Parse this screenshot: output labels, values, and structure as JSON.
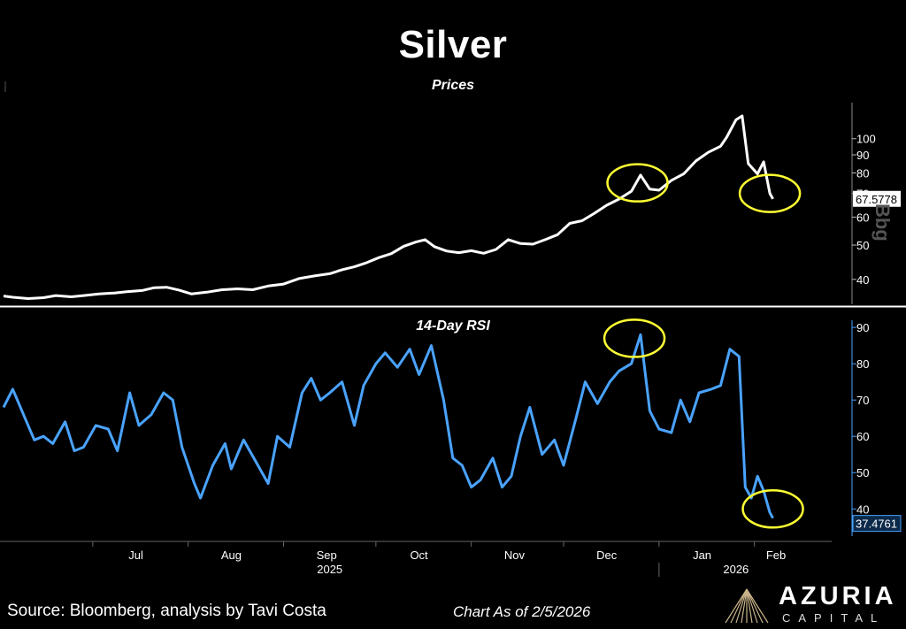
{
  "header": {
    "title": "Silver"
  },
  "footer": {
    "source": "Source: Bloomberg, analysis by Tavi Costa",
    "as_of": "Chart As of 2/5/2026"
  },
  "logo": {
    "name": "AZURIA",
    "sub": "CAPITAL"
  },
  "watermark": "Bbg",
  "colors": {
    "background": "#000000",
    "price_line": "#ffffff",
    "rsi_line": "#4aa3ff",
    "highlight_circle": "#ffff33",
    "divider": "#ffffff"
  },
  "chart_data": [
    {
      "type": "line",
      "title": "Prices",
      "x_axis": {
        "type": "date",
        "month_labels": [
          "Jul",
          "Aug",
          "Sep",
          "Oct",
          "Nov",
          "Dec",
          "Jan",
          "Feb"
        ],
        "year_labels": [
          "2025",
          "2026"
        ],
        "range": [
          "2025-06-02",
          "2026-02-10"
        ]
      },
      "y_axis": {
        "side": "right",
        "scale": "log",
        "ticks": [
          40,
          50,
          60,
          70,
          80,
          90,
          100
        ],
        "ylim": [
          34,
          125
        ]
      },
      "last_value_label": "67.5778",
      "series": [
        {
          "values": [
            [
              "2025-06-02",
              35.9
            ],
            [
              "2025-06-05",
              35.6
            ],
            [
              "2025-06-10",
              35.3
            ],
            [
              "2025-06-15",
              35.5
            ],
            [
              "2025-06-19",
              36.0
            ],
            [
              "2025-06-24",
              35.7
            ],
            [
              "2025-06-28",
              36.0
            ],
            [
              "2025-07-03",
              36.4
            ],
            [
              "2025-07-08",
              36.6
            ],
            [
              "2025-07-12",
              36.9
            ],
            [
              "2025-07-17",
              37.2
            ],
            [
              "2025-07-21",
              37.9
            ],
            [
              "2025-07-25",
              38.0
            ],
            [
              "2025-07-29",
              37.3
            ],
            [
              "2025-08-02",
              36.4
            ],
            [
              "2025-08-07",
              36.8
            ],
            [
              "2025-08-12",
              37.4
            ],
            [
              "2025-08-17",
              37.6
            ],
            [
              "2025-08-22",
              37.4
            ],
            [
              "2025-08-27",
              38.3
            ],
            [
              "2025-09-01",
              38.8
            ],
            [
              "2025-09-06",
              40.2
            ],
            [
              "2025-09-11",
              40.9
            ],
            [
              "2025-09-16",
              41.5
            ],
            [
              "2025-09-20",
              42.6
            ],
            [
              "2025-09-24",
              43.4
            ],
            [
              "2025-09-28",
              44.6
            ],
            [
              "2025-10-02",
              46.1
            ],
            [
              "2025-10-06",
              47.3
            ],
            [
              "2025-10-10",
              49.6
            ],
            [
              "2025-10-14",
              51.0
            ],
            [
              "2025-10-17",
              51.8
            ],
            [
              "2025-10-20",
              49.5
            ],
            [
              "2025-10-24",
              48.1
            ],
            [
              "2025-10-28",
              47.6
            ],
            [
              "2025-11-01",
              48.2
            ],
            [
              "2025-11-05",
              47.4
            ],
            [
              "2025-11-09",
              48.6
            ],
            [
              "2025-11-13",
              51.8
            ],
            [
              "2025-11-17",
              50.5
            ],
            [
              "2025-11-21",
              50.3
            ],
            [
              "2025-11-25",
              51.8
            ],
            [
              "2025-11-29",
              53.5
            ],
            [
              "2025-12-03",
              57.6
            ],
            [
              "2025-12-07",
              58.6
            ],
            [
              "2025-12-11",
              61.5
            ],
            [
              "2025-12-15",
              64.8
            ],
            [
              "2025-12-19",
              67.5
            ],
            [
              "2025-12-23",
              71.0
            ],
            [
              "2025-12-26",
              78.9
            ],
            [
              "2025-12-29",
              72.0
            ],
            [
              "2026-01-01",
              71.5
            ],
            [
              "2026-01-05",
              76.2
            ],
            [
              "2026-01-09",
              79.5
            ],
            [
              "2026-01-13",
              86.5
            ],
            [
              "2026-01-17",
              91.5
            ],
            [
              "2026-01-21",
              95.2
            ],
            [
              "2026-01-23",
              101.0
            ],
            [
              "2026-01-26",
              113.0
            ],
            [
              "2026-01-28",
              116.0
            ],
            [
              "2026-01-30",
              85.0
            ],
            [
              "2026-02-02",
              79.5
            ],
            [
              "2026-02-04",
              86.0
            ],
            [
              "2026-02-06",
              70.0
            ],
            [
              "2026-02-07",
              67.5778
            ]
          ]
        }
      ],
      "annotations": [
        {
          "type": "circle",
          "center": [
            "2025-12-25",
            75
          ]
        },
        {
          "type": "circle",
          "center": [
            "2026-02-06",
            70
          ]
        }
      ]
    },
    {
      "type": "line",
      "title": "14-Day RSI",
      "x_axis": {
        "type": "date",
        "range": [
          "2025-06-02",
          "2026-02-10"
        ]
      },
      "y_axis": {
        "side": "right",
        "ticks": [
          40,
          50,
          60,
          70,
          80,
          90
        ],
        "ylim": [
          33,
          91
        ]
      },
      "last_value_label": "37.4761",
      "series": [
        {
          "values": [
            [
              "2025-06-02",
              68
            ],
            [
              "2025-06-05",
              73
            ],
            [
              "2025-06-09",
              65
            ],
            [
              "2025-06-12",
              59
            ],
            [
              "2025-06-15",
              60
            ],
            [
              "2025-06-18",
              58
            ],
            [
              "2025-06-22",
              64
            ],
            [
              "2025-06-25",
              56
            ],
            [
              "2025-06-28",
              57
            ],
            [
              "2025-07-02",
              63
            ],
            [
              "2025-07-06",
              62
            ],
            [
              "2025-07-09",
              56
            ],
            [
              "2025-07-13",
              72
            ],
            [
              "2025-07-16",
              63
            ],
            [
              "2025-07-20",
              66
            ],
            [
              "2025-07-24",
              72
            ],
            [
              "2025-07-27",
              70
            ],
            [
              "2025-07-30",
              57
            ],
            [
              "2025-08-03",
              47
            ],
            [
              "2025-08-05",
              43
            ],
            [
              "2025-08-09",
              52
            ],
            [
              "2025-08-13",
              58
            ],
            [
              "2025-08-15",
              51
            ],
            [
              "2025-08-19",
              59
            ],
            [
              "2025-08-23",
              53
            ],
            [
              "2025-08-27",
              47
            ],
            [
              "2025-08-30",
              60
            ],
            [
              "2025-09-03",
              57
            ],
            [
              "2025-09-07",
              72
            ],
            [
              "2025-09-10",
              76
            ],
            [
              "2025-09-13",
              70
            ],
            [
              "2025-09-16",
              72
            ],
            [
              "2025-09-20",
              75
            ],
            [
              "2025-09-24",
              63
            ],
            [
              "2025-09-27",
              74
            ],
            [
              "2025-10-01",
              80
            ],
            [
              "2025-10-04",
              83
            ],
            [
              "2025-10-08",
              79
            ],
            [
              "2025-10-12",
              84
            ],
            [
              "2025-10-15",
              77
            ],
            [
              "2025-10-19",
              85
            ],
            [
              "2025-10-23",
              70
            ],
            [
              "2025-10-26",
              54
            ],
            [
              "2025-10-29",
              52
            ],
            [
              "2025-11-01",
              46
            ],
            [
              "2025-11-04",
              48
            ],
            [
              "2025-11-08",
              54
            ],
            [
              "2025-11-11",
              46
            ],
            [
              "2025-11-14",
              49
            ],
            [
              "2025-11-17",
              60
            ],
            [
              "2025-11-20",
              68
            ],
            [
              "2025-11-24",
              55
            ],
            [
              "2025-11-28",
              59
            ],
            [
              "2025-12-01",
              52
            ],
            [
              "2025-12-05",
              65
            ],
            [
              "2025-12-08",
              75
            ],
            [
              "2025-12-12",
              69
            ],
            [
              "2025-12-16",
              75
            ],
            [
              "2025-12-19",
              78
            ],
            [
              "2025-12-23",
              80
            ],
            [
              "2025-12-26",
              88
            ],
            [
              "2025-12-29",
              67
            ],
            [
              "2026-01-01",
              62
            ],
            [
              "2026-01-05",
              61
            ],
            [
              "2026-01-08",
              70
            ],
            [
              "2026-01-11",
              64
            ],
            [
              "2026-01-14",
              72
            ],
            [
              "2026-01-18",
              73
            ],
            [
              "2026-01-21",
              74
            ],
            [
              "2026-01-24",
              84
            ],
            [
              "2026-01-27",
              82
            ],
            [
              "2026-01-29",
              46
            ],
            [
              "2026-01-31",
              43
            ],
            [
              "2026-02-02",
              49
            ],
            [
              "2026-02-04",
              45
            ],
            [
              "2026-02-06",
              39
            ],
            [
              "2026-02-07",
              37.4761
            ]
          ]
        }
      ],
      "annotations": [
        {
          "type": "circle",
          "center": [
            "2025-12-24",
            87
          ]
        },
        {
          "type": "circle",
          "center": [
            "2026-02-07",
            40
          ]
        }
      ]
    }
  ]
}
